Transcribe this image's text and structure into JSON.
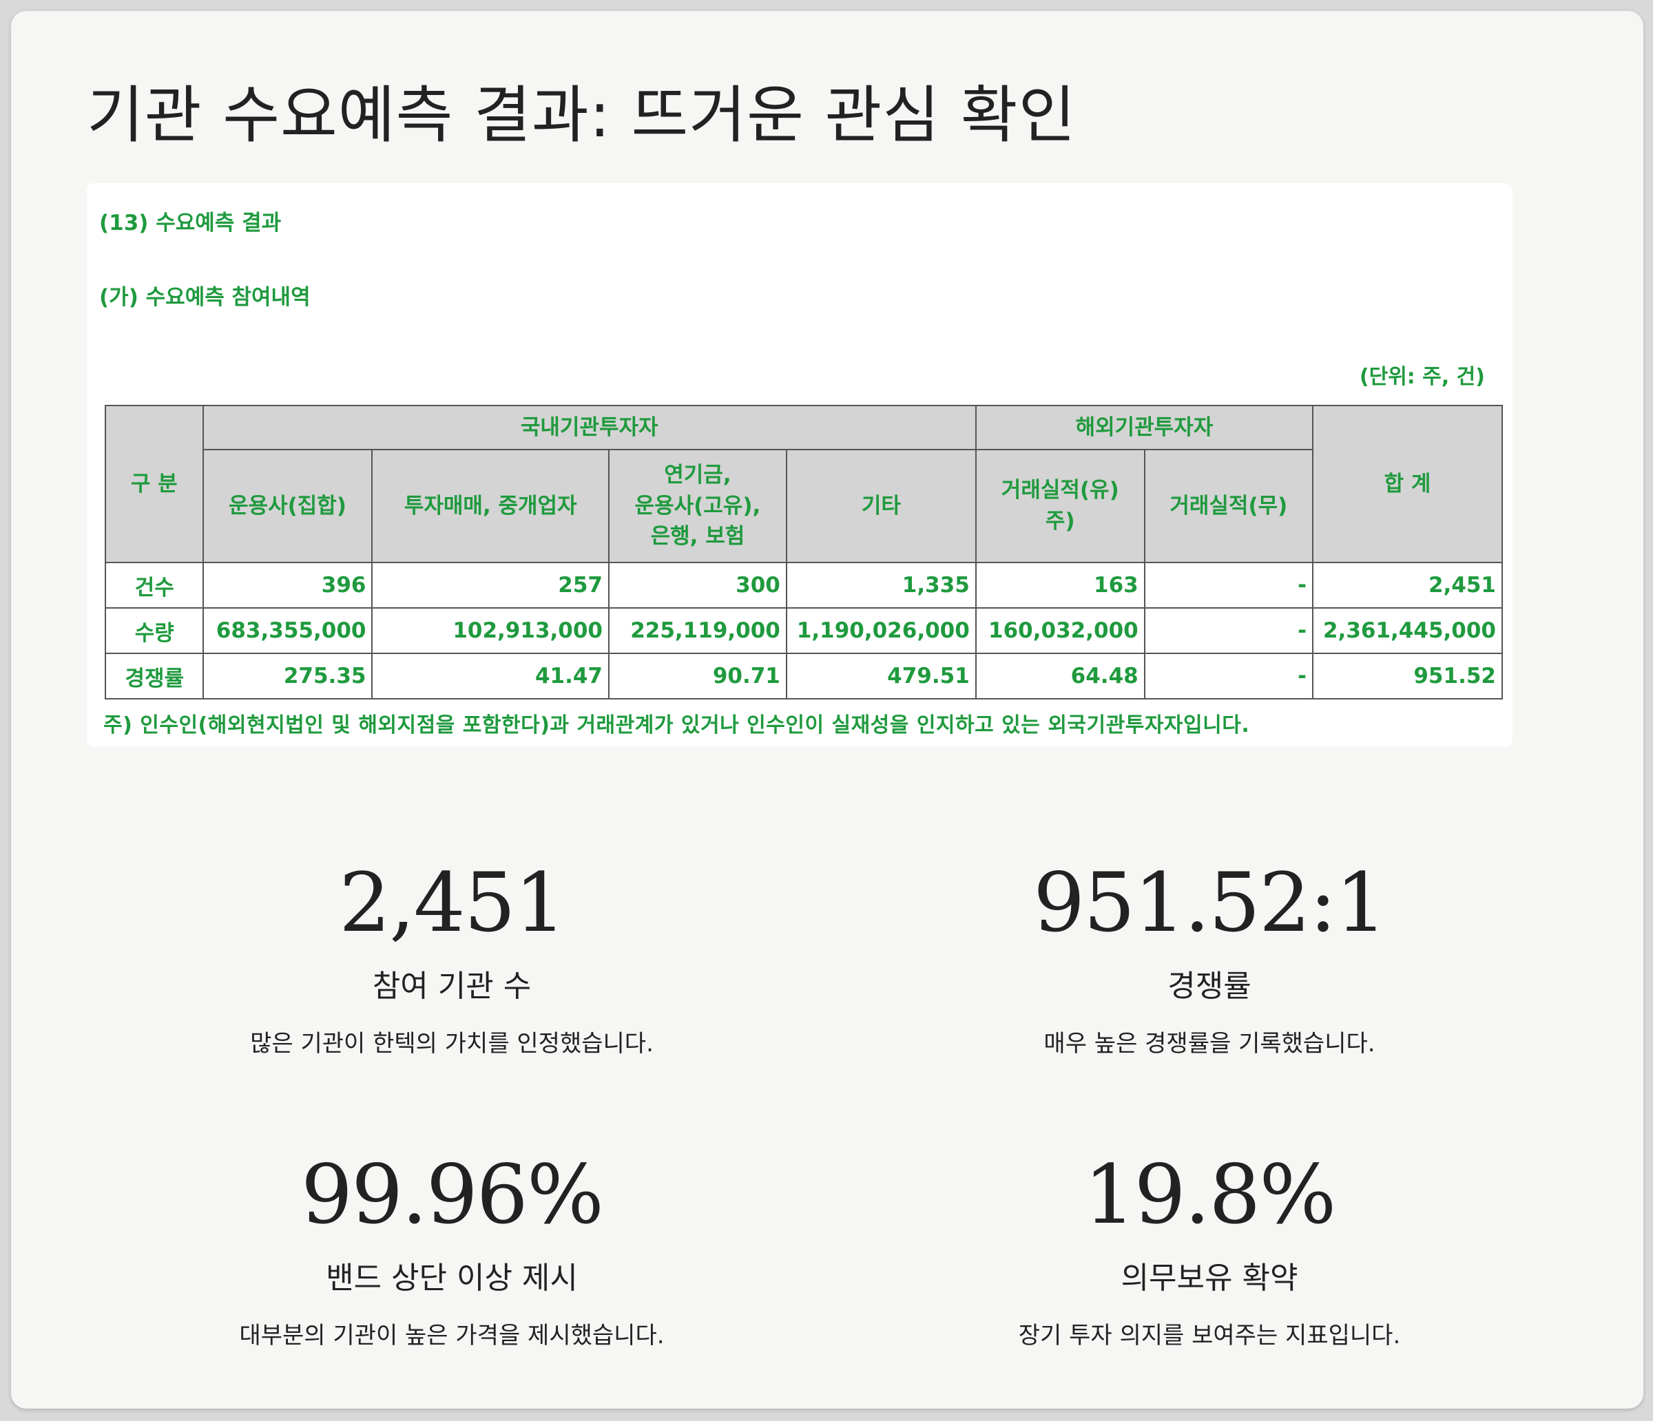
{
  "title": "기관 수요예측 결과: 뜨거운 관심 확인",
  "document": {
    "heading": "(13) 수요예측 결과",
    "subheading": "(가) 수요예측 참여내역",
    "unit": "(단위: 주, 건)",
    "table": {
      "corner": "구 분",
      "group_domestic": "국내기관투자자",
      "group_foreign": "해외기관투자자",
      "total": "합 계",
      "columns": [
        "운용사(집합)",
        "투자매매, 중개업자",
        "연기금,\n운용사(고유),\n은행, 보험",
        "기타",
        "거래실적(유)\n주)",
        "거래실적(무)"
      ],
      "rows": [
        {
          "label": "건수",
          "values": [
            "396",
            "257",
            "300",
            "1,335",
            "163",
            "-",
            "2,451"
          ]
        },
        {
          "label": "수량",
          "values": [
            "683,355,000",
            "102,913,000",
            "225,119,000",
            "1,190,026,000",
            "160,032,000",
            "-",
            "2,361,445,000"
          ]
        },
        {
          "label": "경쟁률",
          "values": [
            "275.35",
            "41.47",
            "90.71",
            "479.51",
            "64.48",
            "-",
            "951.52"
          ]
        }
      ]
    },
    "note": "주)  인수인(해외현지법인 및 해외지점을 포함한다)과 거래관계가 있거나 인수인이 실재성을 인지하고 있는 외국기관투자자입니다."
  },
  "stats": [
    {
      "value": "2,451",
      "label": "참여 기관 수",
      "desc": "많은 기관이 한텍의 가치를 인정했습니다."
    },
    {
      "value": "951.52:1",
      "label": "경쟁률",
      "desc": "매우 높은 경쟁률을 기록했습니다."
    },
    {
      "value": "99.96%",
      "label": "밴드 상단 이상 제시",
      "desc": "대부분의 기관이 높은 가격을 제시했습니다."
    },
    {
      "value": "19.8%",
      "label": "의무보유 확약",
      "desc": "장기 투자 의지를 보여주는 지표입니다."
    }
  ]
}
